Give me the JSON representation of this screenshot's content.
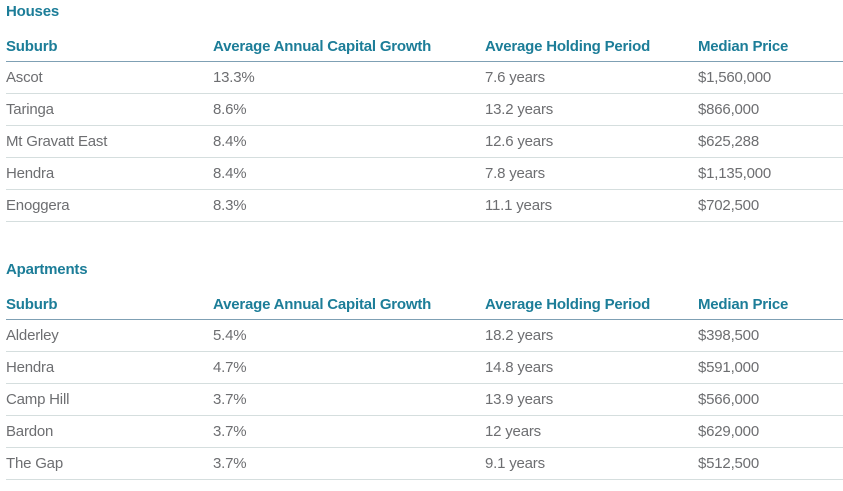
{
  "colors": {
    "accent_teal": "#1C7D98",
    "body_text": "#6D6E71",
    "header_rule": "#7FA0B4",
    "row_divider": "#D5DEDE"
  },
  "columns": {
    "suburb": "Suburb",
    "growth": "Average Annual Capital Growth",
    "holding": "Average Holding Period",
    "price": "Median Price"
  },
  "sections": [
    {
      "title": "Houses",
      "rows": [
        {
          "suburb": "Ascot",
          "growth": "13.3%",
          "holding": "7.6 years",
          "price": "$1,560,000"
        },
        {
          "suburb": "Taringa",
          "growth": "8.6%",
          "holding": "13.2 years",
          "price": "$866,000"
        },
        {
          "suburb": "Mt Gravatt East",
          "growth": "8.4%",
          "holding": "12.6 years",
          "price": "$625,288"
        },
        {
          "suburb": "Hendra",
          "growth": "8.4%",
          "holding": "7.8 years",
          "price": "$1,135,000"
        },
        {
          "suburb": "Enoggera",
          "growth": "8.3%",
          "holding": "11.1 years",
          "price": "$702,500"
        }
      ]
    },
    {
      "title": "Apartments",
      "rows": [
        {
          "suburb": "Alderley",
          "growth": "5.4%",
          "holding": "18.2 years",
          "price": "$398,500"
        },
        {
          "suburb": "Hendra",
          "growth": "4.7%",
          "holding": "14.8 years",
          "price": "$591,000"
        },
        {
          "suburb": "Camp Hill",
          "growth": "3.7%",
          "holding": "13.9 years",
          "price": "$566,000"
        },
        {
          "suburb": "Bardon",
          "growth": "3.7%",
          "holding": "12 years",
          "price": "$629,000"
        },
        {
          "suburb": "The Gap",
          "growth": "3.7%",
          "holding": "9.1 years",
          "price": "$512,500"
        }
      ]
    }
  ],
  "chart_data": [
    {
      "type": "table",
      "title": "Houses",
      "columns": [
        "Suburb",
        "Average Annual Capital Growth",
        "Average Holding Period",
        "Median Price"
      ],
      "rows": [
        [
          "Ascot",
          "13.3%",
          "7.6 years",
          "$1,560,000"
        ],
        [
          "Taringa",
          "8.6%",
          "13.2 years",
          "$866,000"
        ],
        [
          "Mt Gravatt East",
          "8.4%",
          "12.6 years",
          "$625,288"
        ],
        [
          "Hendra",
          "8.4%",
          "7.8 years",
          "$1,135,000"
        ],
        [
          "Enoggera",
          "8.3%",
          "11.1 years",
          "$702,500"
        ]
      ]
    },
    {
      "type": "table",
      "title": "Apartments",
      "columns": [
        "Suburb",
        "Average Annual Capital Growth",
        "Average Holding Period",
        "Median Price"
      ],
      "rows": [
        [
          "Alderley",
          "5.4%",
          "18.2 years",
          "$398,500"
        ],
        [
          "Hendra",
          "4.7%",
          "14.8 years",
          "$591,000"
        ],
        [
          "Camp Hill",
          "3.7%",
          "13.9 years",
          "$566,000"
        ],
        [
          "Bardon",
          "3.7%",
          "12 years",
          "$629,000"
        ],
        [
          "The Gap",
          "3.7%",
          "9.1 years",
          "$512,500"
        ]
      ]
    }
  ]
}
